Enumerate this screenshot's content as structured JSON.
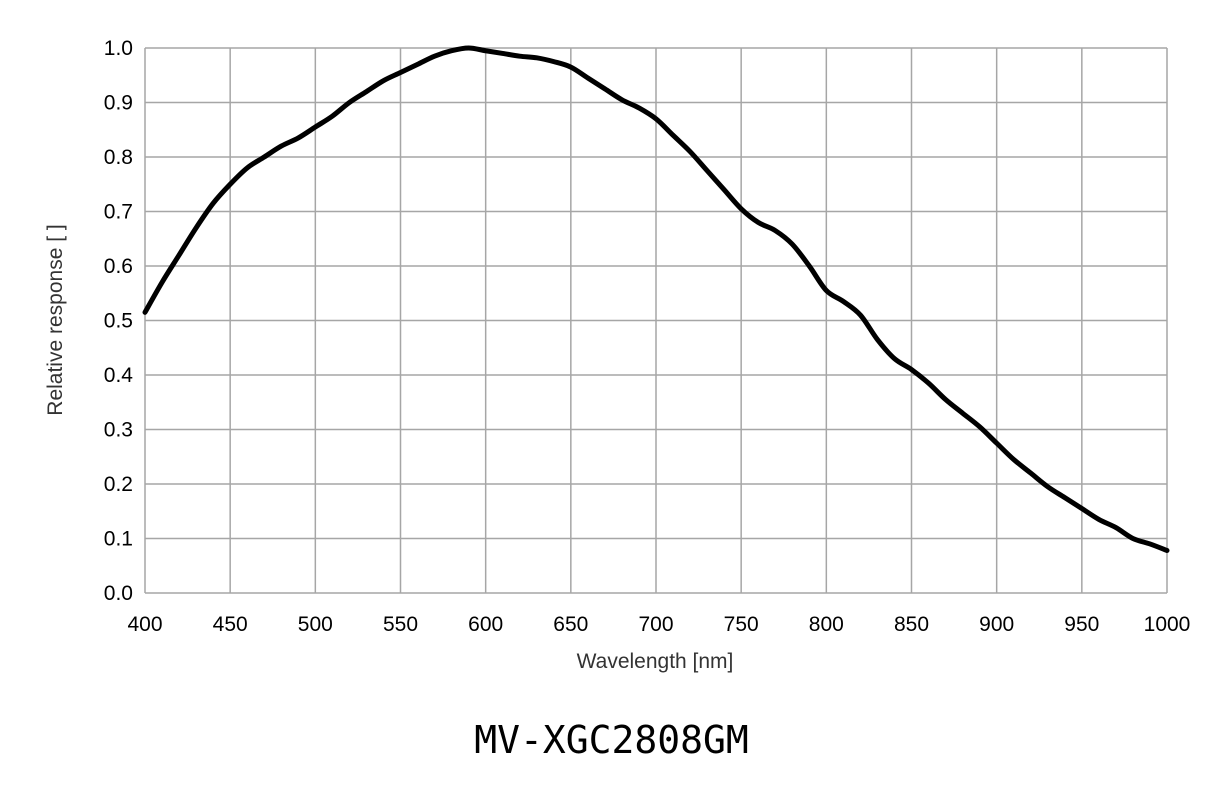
{
  "caption": "MV-XGC2808GM",
  "chart_data": {
    "type": "line",
    "title": "",
    "xlabel": "Wavelength [nm]",
    "ylabel": "Relative response [ ]",
    "xlim": [
      400,
      1000
    ],
    "ylim": [
      0,
      1.0
    ],
    "x_ticks": [
      "400",
      "450",
      "500",
      "550",
      "600",
      "650",
      "700",
      "750",
      "800",
      "850",
      "900",
      "950",
      "1000"
    ],
    "y_ticks": [
      "0.0",
      "0.1",
      "0.2",
      "0.3",
      "0.4",
      "0.5",
      "0.6",
      "0.7",
      "0.8",
      "0.9",
      "1.0"
    ],
    "grid": true,
    "line_color": "#000000",
    "grid_color": "#a6a6a6",
    "series": [
      {
        "x": [
          400,
          410,
          420,
          430,
          440,
          450,
          460,
          470,
          480,
          490,
          500,
          510,
          520,
          530,
          540,
          550,
          560,
          570,
          580,
          590,
          600,
          610,
          620,
          630,
          640,
          650,
          660,
          670,
          680,
          690,
          700,
          710,
          720,
          730,
          740,
          750,
          760,
          770,
          780,
          790,
          800,
          810,
          820,
          830,
          840,
          850,
          860,
          870,
          880,
          890,
          900,
          910,
          920,
          930,
          940,
          950,
          960,
          970,
          980,
          990,
          1000
        ],
        "values": [
          0.515,
          0.57,
          0.62,
          0.67,
          0.715,
          0.75,
          0.78,
          0.8,
          0.82,
          0.835,
          0.855,
          0.875,
          0.9,
          0.92,
          0.94,
          0.955,
          0.97,
          0.985,
          0.995,
          1.0,
          0.995,
          0.99,
          0.985,
          0.982,
          0.975,
          0.965,
          0.945,
          0.925,
          0.905,
          0.89,
          0.87,
          0.84,
          0.81,
          0.775,
          0.74,
          0.705,
          0.68,
          0.665,
          0.64,
          0.6,
          0.555,
          0.535,
          0.51,
          0.465,
          0.43,
          0.41,
          0.385,
          0.355,
          0.33,
          0.305,
          0.275,
          0.245,
          0.22,
          0.195,
          0.175,
          0.155,
          0.135,
          0.12,
          0.1,
          0.09,
          0.078
        ]
      }
    ]
  }
}
